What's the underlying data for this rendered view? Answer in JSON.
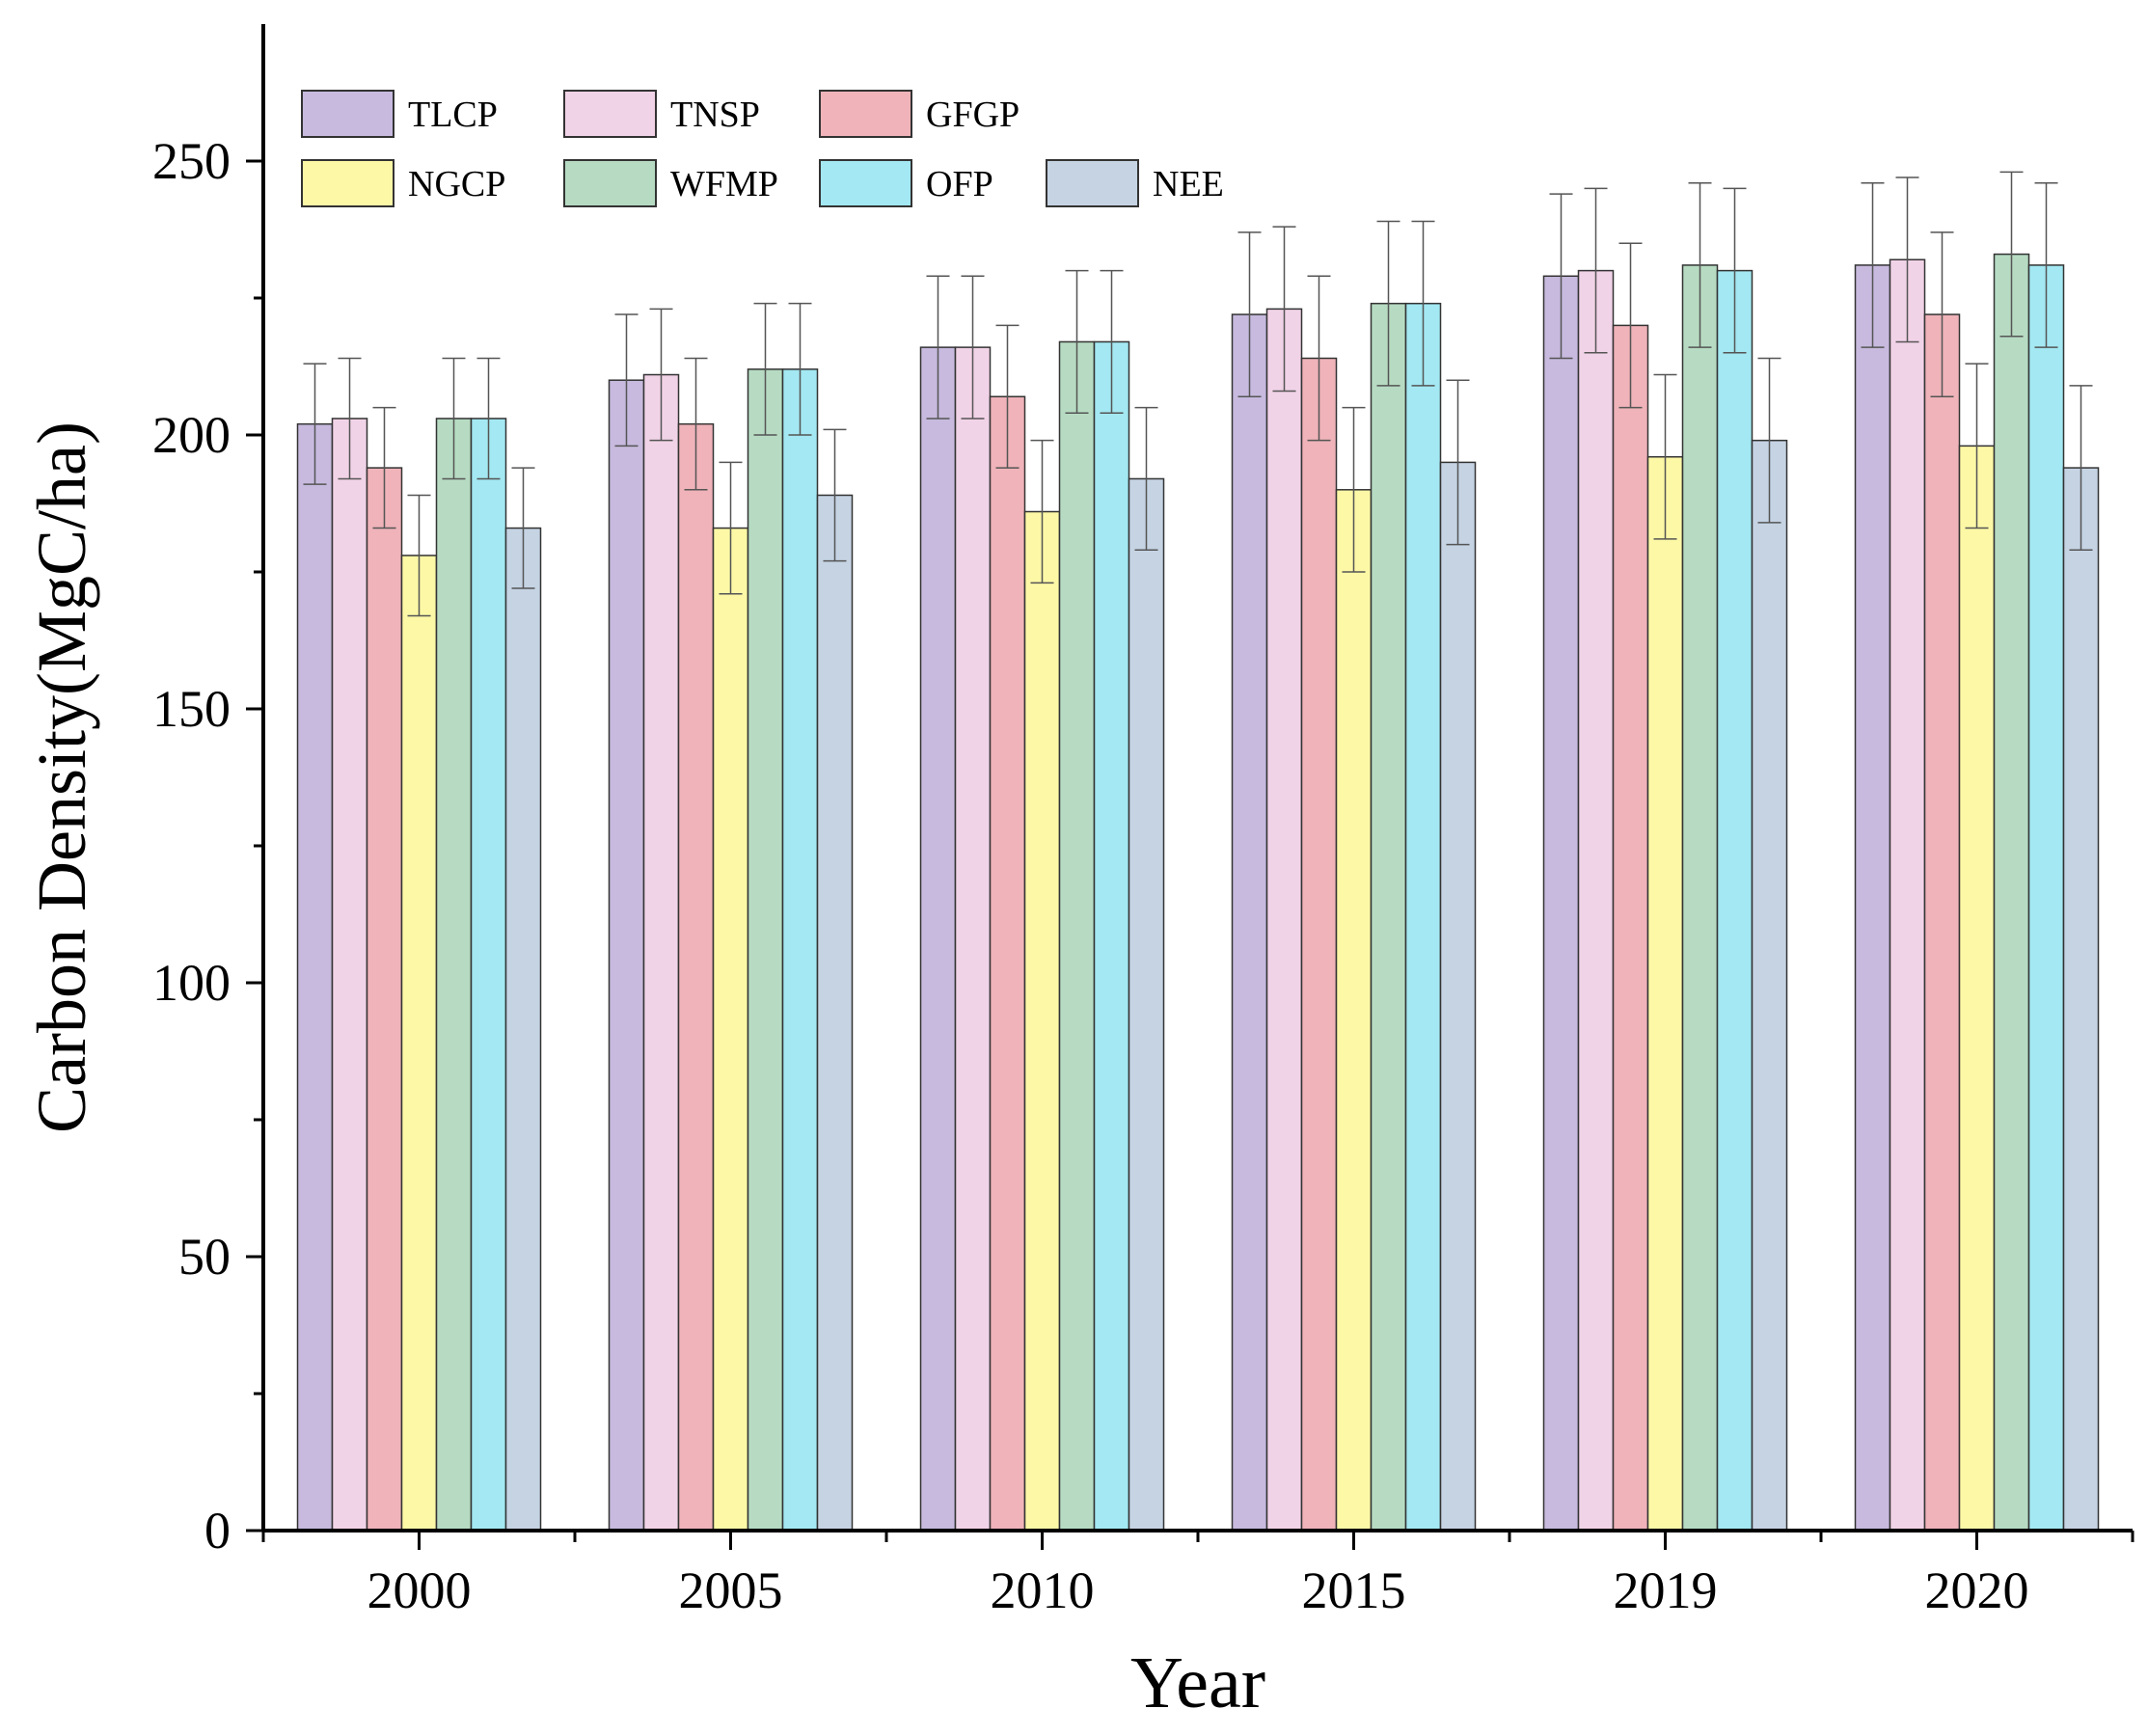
{
  "chart_data": {
    "type": "bar",
    "title": "",
    "xlabel": "Year",
    "ylabel": "Carbon Density(MgC/ha)",
    "categories": [
      "2000",
      "2005",
      "2010",
      "2015",
      "2019",
      "2020"
    ],
    "ylim": [
      0,
      275
    ],
    "yticks": [
      0,
      50,
      100,
      150,
      200,
      250
    ],
    "legend_position": "top-left",
    "series": [
      {
        "name": "TLCP",
        "color": "#c7bade",
        "values": [
          202,
          210,
          216,
          222,
          229,
          231
        ],
        "errors": [
          11,
          12,
          13,
          15,
          15,
          15
        ]
      },
      {
        "name": "TNSP",
        "color": "#f1d3e7",
        "values": [
          203,
          211,
          216,
          223,
          230,
          232
        ],
        "errors": [
          11,
          12,
          13,
          15,
          15,
          15
        ]
      },
      {
        "name": "GFGP",
        "color": "#efb3b9",
        "values": [
          194,
          202,
          207,
          214,
          220,
          222
        ],
        "errors": [
          11,
          12,
          13,
          15,
          15,
          15
        ]
      },
      {
        "name": "NGCP",
        "color": "#fcf8a6",
        "values": [
          178,
          183,
          186,
          190,
          196,
          198
        ],
        "errors": [
          11,
          12,
          13,
          15,
          15,
          15
        ]
      },
      {
        "name": "WFMP",
        "color": "#b6dbc2",
        "values": [
          203,
          212,
          217,
          224,
          231,
          233
        ],
        "errors": [
          11,
          12,
          13,
          15,
          15,
          15
        ]
      },
      {
        "name": "OFP",
        "color": "#a3e8f2",
        "values": [
          203,
          212,
          217,
          224,
          230,
          231
        ],
        "errors": [
          11,
          12,
          13,
          15,
          15,
          15
        ]
      },
      {
        "name": "NEE",
        "color": "#c5d3e3",
        "values": [
          183,
          189,
          192,
          195,
          199,
          194
        ],
        "errors": [
          11,
          12,
          13,
          15,
          15,
          15
        ]
      }
    ]
  }
}
